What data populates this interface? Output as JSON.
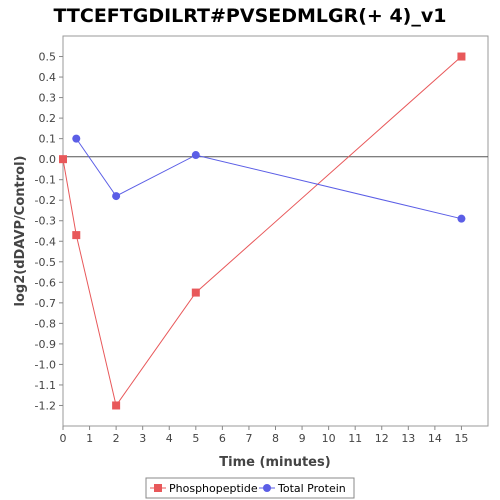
{
  "chart_data": {
    "type": "line",
    "title": "TTCEFTGDILRT#PVSEDMLGR(+ 4)_v1",
    "xlabel": "Time (minutes)",
    "ylabel": "log2(dDAVP/Control)",
    "xlim": [
      0,
      16
    ],
    "ylim": [
      -1.3,
      0.6
    ],
    "xticks": [
      0,
      1,
      2,
      3,
      4,
      5,
      6,
      7,
      8,
      9,
      10,
      11,
      12,
      13,
      14,
      15
    ],
    "yticks": [
      0.5,
      0.4,
      0.3,
      0.2,
      0.1,
      0.0,
      -0.1,
      -0.2,
      -0.3,
      -0.4,
      -0.5,
      -0.6,
      -0.7,
      -0.8,
      -0.9,
      -1.0,
      -1.1,
      -1.2
    ],
    "ytick_labels": [
      "0.5",
      "0.4",
      "0.3",
      "0.2",
      "0.1",
      "0.0",
      "-0.1",
      "-0.2",
      "-0.3",
      "-0.4",
      "-0.5",
      "-0.6",
      "-0.7",
      "-0.8",
      "-0.9",
      "-1.0",
      "-1.1",
      "-1.2"
    ],
    "grid": false,
    "zero_line": true,
    "legend_position": "bottom",
    "series": [
      {
        "name": "Phosphopeptide",
        "color": "#e8585a",
        "marker": "square",
        "x": [
          0,
          0.5,
          2,
          5,
          15
        ],
        "y": [
          0.0,
          -0.37,
          -1.2,
          -0.65,
          0.5
        ]
      },
      {
        "name": "Total Protein",
        "color": "#5b5ee6",
        "marker": "circle",
        "x": [
          0.5,
          2,
          5,
          15
        ],
        "y": [
          0.1,
          -0.18,
          0.02,
          -0.29
        ]
      }
    ]
  }
}
